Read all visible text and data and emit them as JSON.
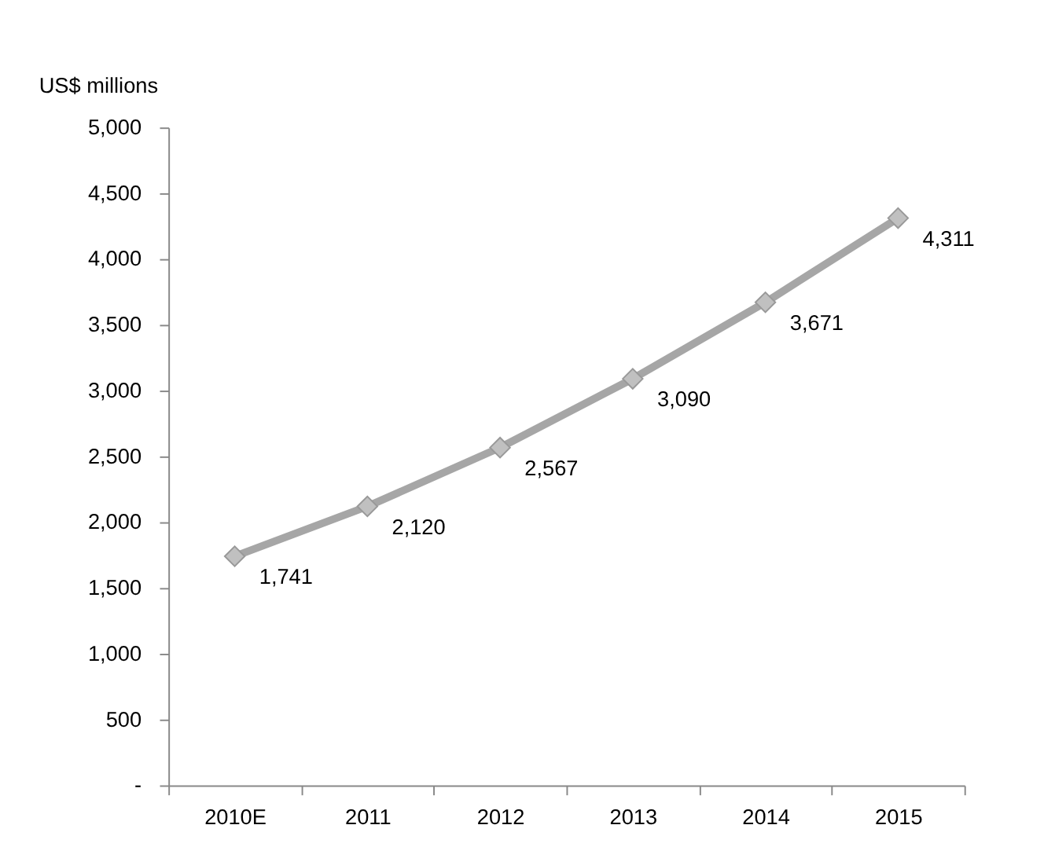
{
  "chart_data": {
    "type": "line",
    "ylabel": "US$ millions",
    "categories": [
      "2010E",
      "2011",
      "2012",
      "2013",
      "2014",
      "2015"
    ],
    "series": [
      {
        "color": "#a6a6a6",
        "values": [
          1741,
          2120,
          2567,
          3090,
          3671,
          4311
        ],
        "value_labels": [
          "1,741",
          "2,120",
          "2,567",
          "3,090",
          "3,671",
          "4,311"
        ]
      }
    ],
    "ylim": [
      0,
      5000
    ],
    "yticks": [
      {
        "value": 0,
        "label": "-"
      },
      {
        "value": 500,
        "label": "500"
      },
      {
        "value": 1000,
        "label": "1,000"
      },
      {
        "value": 1500,
        "label": "1,500"
      },
      {
        "value": 2000,
        "label": "2,000"
      },
      {
        "value": 2500,
        "label": "2,500"
      },
      {
        "value": 3000,
        "label": "3,000"
      },
      {
        "value": 3500,
        "label": "3,500"
      },
      {
        "value": 4000,
        "label": "4,000"
      },
      {
        "value": 4500,
        "label": "4,500"
      },
      {
        "value": 5000,
        "label": "5,000"
      }
    ],
    "marker": "diamond",
    "line_style": "solid"
  }
}
